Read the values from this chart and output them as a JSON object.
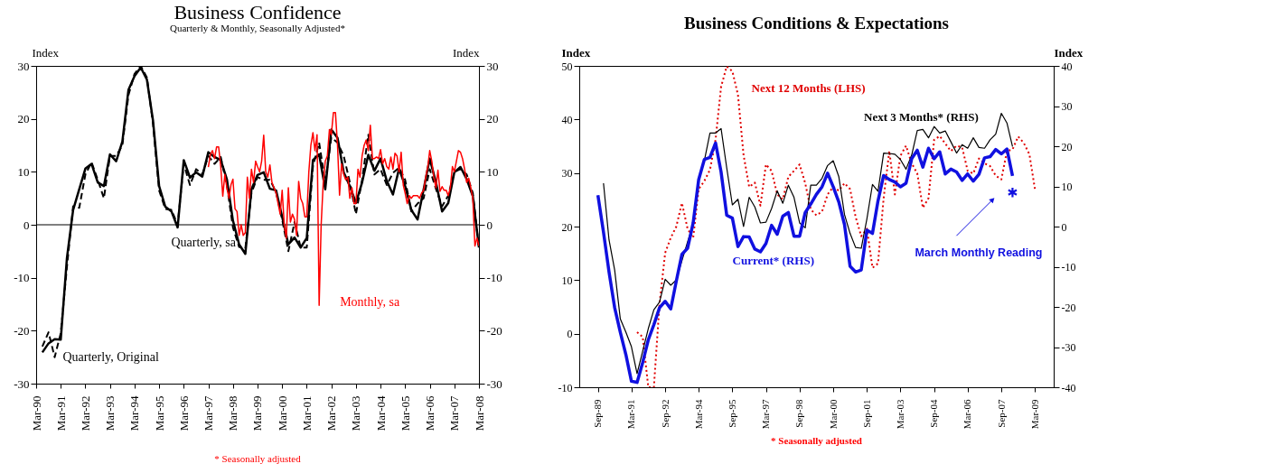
{
  "chart_data": [
    {
      "type": "line",
      "title": "Business Confidence",
      "subtitle": "Quarterly & Monthly, Seasonally Adjusted*",
      "ylabel": "Index",
      "y2label": "Index",
      "grid": false,
      "xlim": [
        "1990-03",
        "2008-03"
      ],
      "xticks": [
        {
          "value": "1990-03",
          "label": "Mar-90"
        },
        {
          "value": "1991-03",
          "label": "Mar-91"
        },
        {
          "value": "1992-03",
          "label": "Mar-92"
        },
        {
          "value": "1993-03",
          "label": "Mar-93"
        },
        {
          "value": "1994-03",
          "label": "Mar-94"
        },
        {
          "value": "1995-03",
          "label": "Mar-95"
        },
        {
          "value": "1996-03",
          "label": "Mar-96"
        },
        {
          "value": "1997-03",
          "label": "Mar-97"
        },
        {
          "value": "1998-03",
          "label": "Mar-98"
        },
        {
          "value": "1999-03",
          "label": "Mar-99"
        },
        {
          "value": "2000-03",
          "label": "Mar-00"
        },
        {
          "value": "2001-03",
          "label": "Mar-01"
        },
        {
          "value": "2002-03",
          "label": "Mar-02"
        },
        {
          "value": "2003-03",
          "label": "Mar-03"
        },
        {
          "value": "2004-03",
          "label": "Mar-04"
        },
        {
          "value": "2005-03",
          "label": "Mar-05"
        },
        {
          "value": "2006-03",
          "label": "Mar-06"
        },
        {
          "value": "2007-03",
          "label": "Mar-07"
        },
        {
          "value": "2008-03",
          "label": "Mar-08"
        }
      ],
      "ylim": [
        -30,
        30
      ],
      "yticks": [
        -30,
        -20,
        -10,
        0,
        10,
        20,
        30
      ],
      "y2lim": [
        -30,
        30
      ],
      "y2ticks": [
        -30,
        -20,
        -10,
        0,
        10,
        20,
        30
      ],
      "ref_lines": [
        {
          "axis": "y",
          "value": 0
        }
      ],
      "annotations": [
        "* Seasonally adjusted"
      ],
      "x": [
        "1990-06",
        "1990-09",
        "1990-12",
        "1991-03",
        "1991-06",
        "1991-09",
        "1991-12",
        "1992-03",
        "1992-06",
        "1992-09",
        "1992-12",
        "1993-03",
        "1993-06",
        "1993-09",
        "1993-12",
        "1994-03",
        "1994-06",
        "1994-09",
        "1994-12",
        "1995-03",
        "1995-06",
        "1995-09",
        "1995-12",
        "1996-03",
        "1996-06",
        "1996-09",
        "1996-12",
        "1997-03",
        "1997-06",
        "1997-09",
        "1997-12",
        "1998-03",
        "1998-06",
        "1998-09",
        "1998-12",
        "1999-03",
        "1999-06",
        "1999-09",
        "1999-12",
        "2000-03",
        "2000-06",
        "2000-09",
        "2000-12",
        "2001-03",
        "2001-06",
        "2001-09",
        "2001-12",
        "2002-03",
        "2002-06",
        "2002-09",
        "2002-12",
        "2003-03",
        "2003-06",
        "2003-09",
        "2003-12",
        "2004-03",
        "2004-06",
        "2004-09",
        "2004-12",
        "2005-03",
        "2005-06",
        "2005-09",
        "2005-12",
        "2006-03",
        "2006-06",
        "2006-09",
        "2006-12",
        "2007-03",
        "2007-06",
        "2007-09",
        "2007-12",
        "2008-03"
      ],
      "series": [
        {
          "name": "Quarterly, sa",
          "color": "#000000",
          "line_style": "solid",
          "values": [
            -24.1,
            -22.4,
            -21.6,
            -21.7,
            -6.3,
            2.8,
            6.7,
            10.6,
            11.5,
            8.0,
            7.3,
            13.3,
            12.0,
            15.7,
            25.5,
            28.1,
            29.7,
            27.4,
            19.6,
            7.3,
            3.4,
            2.5,
            -0.5,
            12.2,
            8.9,
            9.9,
            9.1,
            13.7,
            12.8,
            12.2,
            8.6,
            0.8,
            -3.7,
            -5.5,
            6.7,
            9.4,
            9.9,
            6.8,
            6.5,
            1.5,
            -3.7,
            -2.4,
            -4.3,
            -2.5,
            12.2,
            13.3,
            6.7,
            18.0,
            16.4,
            9.9,
            7.3,
            4.1,
            8.0,
            13.2,
            10.2,
            12.5,
            8.3,
            5.7,
            10.6,
            7.3,
            2.8,
            1.0,
            6.7,
            12.5,
            8.0,
            2.5,
            4.1,
            9.9,
            10.9,
            8.6,
            5.4,
            -4.3
          ]
        },
        {
          "name": "Quarterly, Original",
          "color": "#000000",
          "line_style": "dashed",
          "values": [
            -23,
            -20.3,
            -25,
            -20.5,
            -8,
            3.5,
            3.2,
            9.5,
            11.8,
            8.5,
            5,
            13,
            13,
            15,
            24.5,
            28.5,
            30,
            27.8,
            19,
            6.5,
            3,
            2.8,
            0,
            11.5,
            7.5,
            10.5,
            9.5,
            13,
            11.5,
            12.8,
            7.5,
            -0.5,
            -4.2,
            -4.5,
            6,
            9,
            8.5,
            8.5,
            6.2,
            1,
            -5,
            0.5,
            -4.3,
            -4.3,
            11,
            15.5,
            8,
            16.5,
            15.5,
            13,
            8,
            2,
            8.5,
            17,
            9.5,
            10.5,
            7.5,
            9.8,
            10.8,
            8.5,
            2.5,
            4,
            5,
            10.5,
            6.8,
            3.5,
            5.5,
            10,
            10.5,
            9.5,
            6,
            -4.5
          ]
        },
        {
          "name": "Monthly, sa",
          "color": "#ff0000",
          "line_style": "solid",
          "x": [
            "1997-03",
            "1997-04",
            "1997-05",
            "1997-06",
            "1997-07",
            "1997-08",
            "1997-09",
            "1997-10",
            "1997-11",
            "1997-12",
            "1998-01",
            "1998-02",
            "1998-03",
            "1998-04",
            "1998-05",
            "1998-06",
            "1998-07",
            "1998-08",
            "1998-09",
            "1998-10",
            "1998-11",
            "1998-12",
            "1999-01",
            "1999-02",
            "1999-03",
            "1999-04",
            "1999-05",
            "1999-06",
            "1999-07",
            "1999-08",
            "1999-09",
            "1999-10",
            "1999-11",
            "1999-12",
            "2000-01",
            "2000-02",
            "2000-03",
            "2000-04",
            "2000-05",
            "2000-06",
            "2000-07",
            "2000-08",
            "2000-09",
            "2000-10",
            "2000-11",
            "2000-12",
            "2001-01",
            "2001-02",
            "2001-03",
            "2001-04",
            "2001-05",
            "2001-06",
            "2001-07",
            "2001-08",
            "2001-09",
            "2001-10",
            "2001-11",
            "2001-12",
            "2002-01",
            "2002-02",
            "2002-03",
            "2002-04",
            "2002-05",
            "2002-06",
            "2002-07",
            "2002-08",
            "2002-09",
            "2002-10",
            "2002-11",
            "2002-12",
            "2003-01",
            "2003-02",
            "2003-03",
            "2003-04",
            "2003-05",
            "2003-06",
            "2003-07",
            "2003-08",
            "2003-09",
            "2003-10",
            "2003-11",
            "2003-12",
            "2004-01",
            "2004-02",
            "2004-03",
            "2004-04",
            "2004-05",
            "2004-06",
            "2004-07",
            "2004-08",
            "2004-09",
            "2004-10",
            "2004-11",
            "2004-12",
            "2005-01",
            "2005-02",
            "2005-03",
            "2005-04",
            "2005-05",
            "2005-06",
            "2005-07",
            "2005-08",
            "2005-09",
            "2005-10",
            "2005-11",
            "2005-12",
            "2006-01",
            "2006-02",
            "2006-03",
            "2006-04",
            "2006-05",
            "2006-06",
            "2006-07",
            "2006-08",
            "2006-09",
            "2006-10",
            "2006-11",
            "2006-12",
            "2007-01",
            "2007-02",
            "2007-03",
            "2007-04",
            "2007-05",
            "2007-06",
            "2007-07",
            "2007-08",
            "2007-09",
            "2007-10",
            "2007-11",
            "2007-12",
            "2008-01",
            "2008-02",
            "2008-03"
          ],
          "values": [
            10.9,
            13.3,
            14.0,
            12.5,
            14.7,
            14.7,
            11.0,
            5.4,
            9.5,
            7.0,
            5.0,
            7.6,
            8.6,
            3.0,
            2.5,
            -2.0,
            0,
            -2.0,
            -1.5,
            9.0,
            5.0,
            10.5,
            8.0,
            12.0,
            11.0,
            10.0,
            12.0,
            16.9,
            10.0,
            9.0,
            11.3,
            8.0,
            7.0,
            6.0,
            4.0,
            2.0,
            6.5,
            0,
            -2.5,
            7.0,
            0.5,
            2.0,
            1.0,
            -2.0,
            8.2,
            5.0,
            4.0,
            1.5,
            1.5,
            10.0,
            15.0,
            17.4,
            14.0,
            17.0,
            -15.2,
            0,
            8.0,
            12.0,
            13.0,
            18.0,
            17.0,
            21.2,
            21.2,
            15.0,
            5.6,
            11.5,
            9.5,
            8.5,
            9.0,
            5.0,
            7.0,
            4.0,
            4.0,
            10.5,
            9.0,
            13.0,
            15.0,
            16.0,
            14.0,
            18.8,
            12.5,
            12.5,
            12.8,
            12.5,
            14.2,
            11.5,
            12.5,
            11.0,
            10.5,
            12.8,
            10.5,
            13.5,
            13.0,
            10.0,
            13.7,
            7.5,
            6.0,
            4.0,
            5.5,
            5.0,
            5.5,
            5.5,
            5.5,
            5.0,
            6.0,
            6.5,
            9.0,
            11.0,
            14.0,
            12.0,
            9.0,
            7.0,
            10.3,
            6.3,
            7.2,
            6.5,
            6.5,
            5.5,
            7.0,
            11.0,
            10.0,
            12.0,
            14.0,
            13.7,
            12.5,
            10.5,
            8.0,
            8.8,
            7.0,
            5.0,
            -4.0,
            -2.5,
            -4.0
          ]
        }
      ]
    },
    {
      "type": "line",
      "title": "Business Conditions & Expectations",
      "ylabel": "Index",
      "y2label": "Index",
      "grid": false,
      "xlim": [
        "1988-11",
        "2010-01"
      ],
      "xticks": [
        {
          "value": "1989-09",
          "label": "Sep-89"
        },
        {
          "value": "1991-03",
          "label": "Mar-91"
        },
        {
          "value": "1992-09",
          "label": "Sep-92"
        },
        {
          "value": "1994-03",
          "label": "Mar-94"
        },
        {
          "value": "1995-09",
          "label": "Sep-95"
        },
        {
          "value": "1997-03",
          "label": "Mar-97"
        },
        {
          "value": "1998-09",
          "label": "Sep-98"
        },
        {
          "value": "2000-03",
          "label": "Mar-00"
        },
        {
          "value": "2001-09",
          "label": "Sep-01"
        },
        {
          "value": "2003-03",
          "label": "Mar-03"
        },
        {
          "value": "2004-09",
          "label": "Sep-04"
        },
        {
          "value": "2006-03",
          "label": "Mar-06"
        },
        {
          "value": "2007-09",
          "label": "Sep-07"
        },
        {
          "value": "2009-03",
          "label": "Mar-09"
        }
      ],
      "ylim": [
        -10,
        50
      ],
      "yticks": [
        -10,
        0,
        10,
        20,
        30,
        40,
        50
      ],
      "y2lim": [
        -40,
        40
      ],
      "y2ticks": [
        -40,
        -30,
        -20,
        -10,
        0,
        10,
        20,
        30,
        40
      ],
      "annotations": [
        "March Monthly Reading",
        "* Seasonally adjusted"
      ],
      "series": [
        {
          "name": "Next 12 Months (LHS)",
          "color": "#e00000",
          "line_style": "dotted",
          "x": [
            "1991-06",
            "1991-09",
            "1991-12",
            "1992-03",
            "1992-06",
            "1992-09",
            "1992-12",
            "1993-03",
            "1993-06",
            "1993-09",
            "1993-12",
            "1994-03",
            "1994-06",
            "1994-09",
            "1994-12",
            "1995-03",
            "1995-06",
            "1995-09",
            "1995-12",
            "1996-03",
            "1996-06",
            "1996-09",
            "1996-12",
            "1997-03",
            "1997-06",
            "1997-09",
            "1997-12",
            "1998-03",
            "1998-06",
            "1998-09",
            "1998-12",
            "1999-03",
            "1999-06",
            "1999-09",
            "1999-12",
            "2000-03",
            "2000-06",
            "2000-09",
            "2000-12",
            "2001-03",
            "2001-06",
            "2001-09",
            "2001-12",
            "2002-03",
            "2002-06",
            "2002-09",
            "2002-12",
            "2003-03",
            "2003-06",
            "2003-09",
            "2003-12",
            "2004-03",
            "2004-06",
            "2004-09",
            "2004-12",
            "2005-03",
            "2005-06",
            "2005-09",
            "2005-12",
            "2006-03",
            "2006-06",
            "2006-09",
            "2006-12",
            "2007-03",
            "2007-06",
            "2007-09",
            "2007-12",
            "2008-03",
            "2008-06",
            "2008-09",
            "2008-12",
            "2009-03"
          ],
          "values": [
            0.3,
            -0.6,
            -10,
            -10,
            5.6,
            15.1,
            17.9,
            20.0,
            24.4,
            19.6,
            17.9,
            27.0,
            28.5,
            30.6,
            36.2,
            46.1,
            49.9,
            49.0,
            44.6,
            33.4,
            27.4,
            28.2,
            23.9,
            31.6,
            30.4,
            26.0,
            25.1,
            29.3,
            30.4,
            31.6,
            28.1,
            23.2,
            22.1,
            22.8,
            26.0,
            27.4,
            26.7,
            28.1,
            27.0,
            21.8,
            18.2,
            19.6,
            12.3,
            13.1,
            25.3,
            34.1,
            26.0,
            33.2,
            35.1,
            31.8,
            29.9,
            23.5,
            25.3,
            36.2,
            36.9,
            35.5,
            34.1,
            35.1,
            34.8,
            30.4,
            29.9,
            32.7,
            31.8,
            31.3,
            29.5,
            28.8,
            34.1,
            34.4,
            36.8,
            35.6,
            33.5,
            27.0
          ]
        },
        {
          "name": "Next 3 Months* (RHS)",
          "color": "#000000",
          "line_style": "solid",
          "axis": "y2",
          "x": [
            "1989-12",
            "1990-03",
            "1990-06",
            "1990-09",
            "1990-12",
            "1991-03",
            "1991-06",
            "1991-09",
            "1991-12",
            "1992-03",
            "1992-06",
            "1992-09",
            "1992-12",
            "1993-03",
            "1993-06",
            "1993-09",
            "1993-12",
            "1994-03",
            "1994-06",
            "1994-09",
            "1994-12",
            "1995-03",
            "1995-06",
            "1995-09",
            "1995-12",
            "1996-03",
            "1996-06",
            "1996-09",
            "1996-12",
            "1997-03",
            "1997-06",
            "1997-09",
            "1997-12",
            "1998-03",
            "1998-06",
            "1998-09",
            "1998-12",
            "1999-03",
            "1999-06",
            "1999-09",
            "1999-12",
            "2000-03",
            "2000-06",
            "2000-09",
            "2000-12",
            "2001-03",
            "2001-06",
            "2001-09",
            "2001-12",
            "2002-03",
            "2002-06",
            "2002-09",
            "2002-12",
            "2003-03",
            "2003-06",
            "2003-09",
            "2003-12",
            "2004-03",
            "2004-06",
            "2004-09",
            "2004-12",
            "2005-03",
            "2005-06",
            "2005-09",
            "2005-12",
            "2006-03",
            "2006-06",
            "2006-09",
            "2006-12",
            "2007-03",
            "2007-06",
            "2007-09",
            "2007-12",
            "2008-03"
          ],
          "values": [
            10.8,
            -3.3,
            -10.8,
            -23.0,
            -26.3,
            -29.9,
            -36.6,
            -31.0,
            -25.4,
            -20.7,
            -18.8,
            -13.1,
            -14.6,
            -13.3,
            -8.5,
            -3.8,
            0.5,
            11.3,
            16.4,
            23.3,
            23.3,
            24.4,
            14.6,
            5.4,
            6.8,
            0,
            7.3,
            4.9,
            0.9,
            1.1,
            4.5,
            8.9,
            5.8,
            10.3,
            7.3,
            0.9,
            -0.3,
            10.3,
            10.3,
            12.0,
            15.2,
            16.4,
            12.4,
            3.0,
            -1.7,
            -5.2,
            -5.4,
            1.9,
            10.5,
            8.8,
            18.3,
            18.2,
            18.0,
            16.7,
            14.3,
            17.8,
            23.9,
            24.2,
            22.1,
            24.9,
            23.3,
            23.8,
            21.1,
            18.3,
            20.4,
            19.5,
            22.1,
            19.7,
            19.5,
            21.6,
            23.0,
            28.2,
            25.8,
            19.9
          ]
        },
        {
          "name": "Current* (RHS)",
          "color": "#1010e0",
          "line_style": "solid",
          "axis": "y2",
          "x": [
            "1989-09",
            "1989-12",
            "1990-03",
            "1990-06",
            "1990-09",
            "1990-12",
            "1991-03",
            "1991-06",
            "1991-09",
            "1991-12",
            "1992-03",
            "1992-06",
            "1992-09",
            "1992-12",
            "1993-03",
            "1993-06",
            "1993-09",
            "1993-12",
            "1994-03",
            "1994-06",
            "1994-09",
            "1994-12",
            "1995-03",
            "1995-06",
            "1995-09",
            "1995-12",
            "1996-03",
            "1996-06",
            "1996-09",
            "1996-12",
            "1997-03",
            "1997-06",
            "1997-09",
            "1997-12",
            "1998-03",
            "1998-06",
            "1998-09",
            "1998-12",
            "1999-03",
            "1999-06",
            "1999-09",
            "1999-12",
            "2000-03",
            "2000-06",
            "2000-09",
            "2000-12",
            "2001-03",
            "2001-06",
            "2001-09",
            "2001-12",
            "2002-03",
            "2002-06",
            "2002-09",
            "2002-12",
            "2003-03",
            "2003-06",
            "2003-09",
            "2003-12",
            "2004-03",
            "2004-06",
            "2004-09",
            "2004-12",
            "2005-03",
            "2005-06",
            "2005-09",
            "2005-12",
            "2006-03",
            "2006-06",
            "2006-09",
            "2006-12",
            "2007-03",
            "2007-06",
            "2007-09",
            "2007-12",
            "2008-03"
          ],
          "values": [
            7.8,
            -1.4,
            -11.3,
            -20.2,
            -26.3,
            -31.9,
            -38.5,
            -38.8,
            -33.8,
            -28.2,
            -24.4,
            -20.2,
            -18.6,
            -20.5,
            -13.6,
            -6.9,
            -5.4,
            0.9,
            11.7,
            16.7,
            17.2,
            20.8,
            13.6,
            2.8,
            2.1,
            -5.0,
            -2.5,
            -2.6,
            -5.6,
            -6.3,
            -4.2,
            0.3,
            -1.9,
            2.6,
            3.5,
            -2.4,
            -2.4,
            3.5,
            5.6,
            8.0,
            9.9,
            13.3,
            9.9,
            6.1,
            0.5,
            -9.9,
            -11.3,
            -10.8,
            -0.9,
            -1.7,
            6.4,
            12.7,
            11.7,
            11.1,
            9.9,
            10.8,
            16.9,
            19.0,
            14.8,
            19.5,
            16.9,
            18.6,
            13.1,
            14.3,
            13.6,
            11.5,
            13.1,
            11.3,
            13.0,
            17.1,
            17.4,
            19.2,
            18.1,
            19.3,
            12.6
          ]
        },
        {
          "type": "scatter",
          "marker": "cross",
          "color": "#1010e0",
          "axis": "y2",
          "x": [
            "2008-03"
          ],
          "values": [
            8.5
          ]
        }
      ]
    }
  ]
}
